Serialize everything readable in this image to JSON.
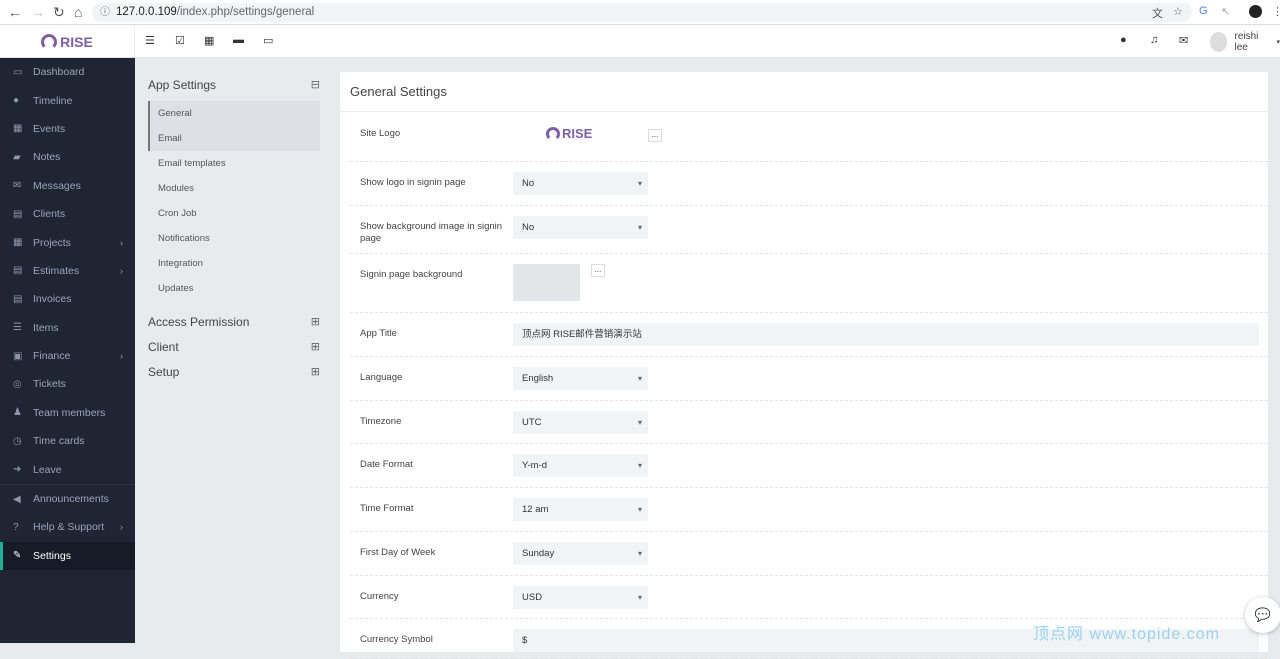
{
  "browser": {
    "url_host": "127.0.0.109",
    "url_path": "/index.php/settings/general"
  },
  "header": {
    "logo": "RISE",
    "user_name": "reishi lee"
  },
  "sidebar": {
    "items": [
      {
        "label": "Dashboard",
        "icon": "▭",
        "chevron": false
      },
      {
        "label": "Timeline",
        "icon": "●",
        "chevron": false
      },
      {
        "label": "Events",
        "icon": "▦",
        "chevron": false
      },
      {
        "label": "Notes",
        "icon": "▰",
        "chevron": false
      },
      {
        "label": "Messages",
        "icon": "✉",
        "chevron": false
      },
      {
        "label": "Clients",
        "icon": "▤",
        "chevron": false
      },
      {
        "label": "Projects",
        "icon": "▦",
        "chevron": true
      },
      {
        "label": "Estimates",
        "icon": "▤",
        "chevron": true
      },
      {
        "label": "Invoices",
        "icon": "▤",
        "chevron": false
      },
      {
        "label": "Items",
        "icon": "☰",
        "chevron": false
      },
      {
        "label": "Finance",
        "icon": "▣",
        "chevron": true
      },
      {
        "label": "Tickets",
        "icon": "◎",
        "chevron": false
      },
      {
        "label": "Team members",
        "icon": "♟",
        "chevron": false
      },
      {
        "label": "Time cards",
        "icon": "◷",
        "chevron": false
      },
      {
        "label": "Leave",
        "icon": "➜",
        "chevron": false
      },
      {
        "label": "Announcements",
        "icon": "◀",
        "chevron": false
      },
      {
        "label": "Help & Support",
        "icon": "?",
        "chevron": true
      },
      {
        "label": "Settings",
        "icon": "✎",
        "chevron": false
      }
    ]
  },
  "settings_menu": {
    "app_settings": "App Settings",
    "items": [
      "General",
      "Email",
      "Email templates",
      "Modules",
      "Cron Job",
      "Notifications",
      "Integration",
      "Updates"
    ],
    "sections": [
      "Access Permission",
      "Client",
      "Setup"
    ]
  },
  "panel": {
    "title": "General Settings",
    "logo_text": "RISE",
    "fields": [
      {
        "label": "Site Logo"
      },
      {
        "label": "Show logo in signin page",
        "value": "No"
      },
      {
        "label": "Show background image in signin page",
        "value": "No"
      },
      {
        "label": "Signin page background"
      },
      {
        "label": "App Title",
        "value": "顶点网 RISE邮件营销演示站"
      },
      {
        "label": "Language",
        "value": "English"
      },
      {
        "label": "Timezone",
        "value": "UTC"
      },
      {
        "label": "Date Format",
        "value": "Y-m-d"
      },
      {
        "label": "Time Format",
        "value": "12 am"
      },
      {
        "label": "First Day of Week",
        "value": "Sunday"
      },
      {
        "label": "Currency",
        "value": "USD"
      },
      {
        "label": "Currency Symbol",
        "value": "$"
      }
    ],
    "upload_label": "..."
  },
  "watermark": "顶点网 www.topide.com"
}
